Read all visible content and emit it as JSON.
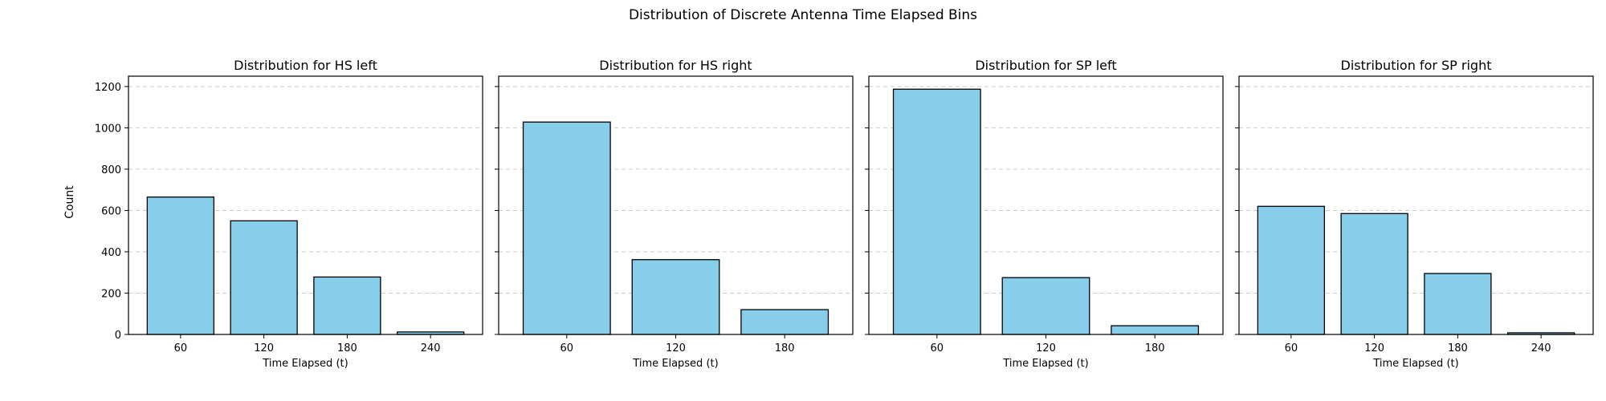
{
  "figure": {
    "suptitle": "Distribution of Discrete Antenna Time Elapsed Bins",
    "shared_ylabel": "Count"
  },
  "colors": {
    "bar_fill": "#87ceeb",
    "bar_edge": "#000000",
    "grid": "#cccccc",
    "text": "#000000"
  },
  "chart_data": [
    {
      "type": "bar",
      "title": "Distribution for HS left",
      "xlabel": "Time Elapsed (t)",
      "ylabel": "Count",
      "categories": [
        "60",
        "120",
        "180",
        "240"
      ],
      "values": [
        665,
        550,
        278,
        12
      ],
      "ylim": [
        0,
        1250
      ],
      "yticks": [
        0,
        200,
        400,
        600,
        800,
        1000,
        1200
      ],
      "grid": "y-dashed"
    },
    {
      "type": "bar",
      "title": "Distribution for HS right",
      "xlabel": "Time Elapsed (t)",
      "ylabel": "",
      "categories": [
        "60",
        "120",
        "180"
      ],
      "values": [
        1028,
        362,
        120
      ],
      "ylim": [
        0,
        1250
      ],
      "yticks": [
        0,
        200,
        400,
        600,
        800,
        1000,
        1200
      ],
      "grid": "y-dashed"
    },
    {
      "type": "bar",
      "title": "Distribution for SP left",
      "xlabel": "Time Elapsed (t)",
      "ylabel": "",
      "categories": [
        "60",
        "120",
        "180"
      ],
      "values": [
        1187,
        275,
        42
      ],
      "ylim": [
        0,
        1250
      ],
      "yticks": [
        0,
        200,
        400,
        600,
        800,
        1000,
        1200
      ],
      "grid": "y-dashed"
    },
    {
      "type": "bar",
      "title": "Distribution for SP right",
      "xlabel": "Time Elapsed (t)",
      "ylabel": "",
      "categories": [
        "60",
        "120",
        "180",
        "240"
      ],
      "values": [
        620,
        585,
        295,
        8
      ],
      "ylim": [
        0,
        1250
      ],
      "yticks": [
        0,
        200,
        400,
        600,
        800,
        1000,
        1200
      ],
      "grid": "y-dashed"
    }
  ]
}
